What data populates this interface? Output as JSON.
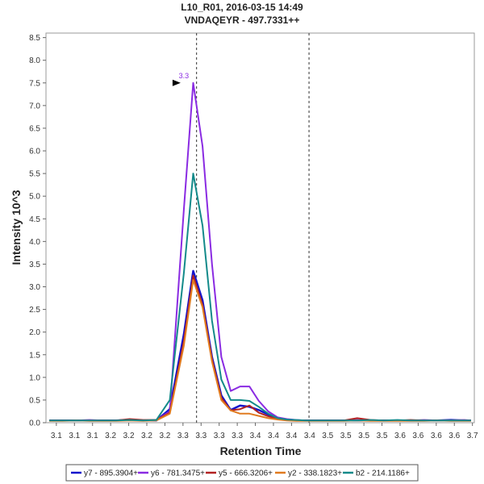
{
  "chart_data": {
    "type": "line",
    "title": "L10_R01, 2016-03-15 14:49",
    "subtitle": "VNDAQEYR - 497.7331++",
    "xlabel": "Retention Time",
    "ylabel": "Intensity 10^3",
    "xlim": [
      3.075,
      3.715
    ],
    "ylim": [
      0,
      8.6
    ],
    "x_tick_labels": [
      "3.1",
      "3.1",
      "3.1",
      "3.2",
      "3.2",
      "3.2",
      "3.2",
      "3.3",
      "3.3",
      "3.3",
      "3.3",
      "3.4",
      "3.4",
      "3.4",
      "3.4",
      "3.5",
      "3.5",
      "3.5",
      "3.5",
      "3.6",
      "3.6",
      "3.6",
      "3.6",
      "3.7"
    ],
    "y_ticks": [
      0,
      0.5,
      1,
      1.5,
      2,
      2.5,
      3,
      3.5,
      4,
      4.5,
      5,
      5.5,
      6,
      6.5,
      7,
      7.5,
      8,
      8.5
    ],
    "y_tick_labels": [
      "0.0",
      "0.5",
      "1.0",
      "1.5",
      "2.0",
      "2.5",
      "3.0",
      "3.5",
      "4.0",
      "4.5",
      "5.0",
      "5.5",
      "6.0",
      "6.5",
      "7.0",
      "7.5",
      "8.0",
      "8.5"
    ],
    "boundaries": [
      3.3,
      3.468
    ],
    "peak_annotation": {
      "label": "3.3",
      "x": 3.281,
      "y": 7.5
    },
    "x": [
      3.08,
      3.1,
      3.12,
      3.14,
      3.16,
      3.18,
      3.2,
      3.22,
      3.24,
      3.26,
      3.281,
      3.295,
      3.309,
      3.323,
      3.337,
      3.351,
      3.365,
      3.379,
      3.393,
      3.407,
      3.421,
      3.435,
      3.449,
      3.463,
      3.48,
      3.5,
      3.52,
      3.54,
      3.56,
      3.58,
      3.6,
      3.62,
      3.64,
      3.66,
      3.68,
      3.7,
      3.71
    ],
    "series": [
      {
        "name": "y7 - 895.3904+",
        "color": "#1414cc",
        "values": [
          0.05,
          0.05,
          0.05,
          0.05,
          0.05,
          0.05,
          0.06,
          0.05,
          0.05,
          0.3,
          1.95,
          3.35,
          2.7,
          1.45,
          0.6,
          0.28,
          0.38,
          0.35,
          0.28,
          0.18,
          0.1,
          0.07,
          0.05,
          0.05,
          0.05,
          0.05,
          0.05,
          0.05,
          0.05,
          0.05,
          0.05,
          0.05,
          0.05,
          0.05,
          0.06,
          0.05,
          0.05
        ]
      },
      {
        "name": "y6 - 781.3475+",
        "color": "#8a2be2",
        "values": [
          0.05,
          0.05,
          0.05,
          0.06,
          0.05,
          0.05,
          0.07,
          0.05,
          0.06,
          0.25,
          4.7,
          7.5,
          6.1,
          3.5,
          1.45,
          0.7,
          0.8,
          0.8,
          0.48,
          0.25,
          0.12,
          0.08,
          0.06,
          0.05,
          0.05,
          0.05,
          0.05,
          0.06,
          0.05,
          0.05,
          0.05,
          0.05,
          0.06,
          0.05,
          0.05,
          0.06,
          0.05
        ]
      },
      {
        "name": "y5 - 666.3206+",
        "color": "#b22222",
        "values": [
          0.05,
          0.05,
          0.05,
          0.05,
          0.05,
          0.05,
          0.08,
          0.06,
          0.06,
          0.22,
          1.8,
          3.25,
          2.6,
          1.4,
          0.55,
          0.27,
          0.3,
          0.38,
          0.22,
          0.14,
          0.08,
          0.06,
          0.05,
          0.05,
          0.05,
          0.05,
          0.05,
          0.1,
          0.06,
          0.05,
          0.05,
          0.06,
          0.05,
          0.05,
          0.05,
          0.05,
          0.05
        ]
      },
      {
        "name": "y2 - 338.1823+",
        "color": "#e07b20",
        "values": [
          0.04,
          0.04,
          0.05,
          0.04,
          0.04,
          0.04,
          0.05,
          0.04,
          0.05,
          0.2,
          1.7,
          3.15,
          2.55,
          1.35,
          0.5,
          0.27,
          0.2,
          0.2,
          0.15,
          0.1,
          0.07,
          0.05,
          0.04,
          0.04,
          0.04,
          0.04,
          0.04,
          0.05,
          0.04,
          0.04,
          0.04,
          0.04,
          0.04,
          0.05,
          0.04,
          0.04,
          0.04
        ]
      },
      {
        "name": "b2 - 214.1186+",
        "color": "#138a8a",
        "values": [
          0.05,
          0.05,
          0.05,
          0.05,
          0.05,
          0.05,
          0.06,
          0.05,
          0.06,
          0.5,
          3.3,
          5.5,
          4.35,
          2.25,
          0.95,
          0.5,
          0.5,
          0.48,
          0.35,
          0.2,
          0.1,
          0.07,
          0.06,
          0.05,
          0.05,
          0.05,
          0.05,
          0.05,
          0.06,
          0.05,
          0.06,
          0.05,
          0.05,
          0.05,
          0.05,
          0.05,
          0.05
        ]
      }
    ]
  }
}
